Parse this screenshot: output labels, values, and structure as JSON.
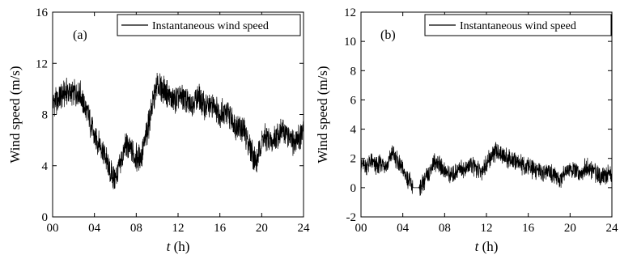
{
  "chart_data": [
    {
      "type": "line",
      "panel_label": "(a)",
      "xlabel": "t (h)",
      "xlabel_var": "t",
      "xlabel_unit": "(h)",
      "ylabel": "Wind speed (m/s)",
      "xlim": [
        0,
        24
      ],
      "ylim": [
        0,
        16
      ],
      "xticks": [
        0,
        4,
        8,
        12,
        16,
        20,
        24
      ],
      "xtick_labels": [
        "00",
        "04",
        "08",
        "12",
        "16",
        "20",
        "24"
      ],
      "yticks": [
        0,
        4,
        8,
        12,
        16
      ],
      "ytick_labels": [
        "0",
        "4",
        "8",
        "12",
        "16"
      ],
      "legend": "top-right",
      "grid": false,
      "series": [
        {
          "name": "Instantaneous wind speed",
          "x": [
            0,
            0.5,
            1,
            1.5,
            2,
            2.5,
            3,
            3.5,
            4,
            4.5,
            5,
            5.5,
            6,
            6.5,
            7,
            7.5,
            8,
            8.5,
            9,
            9.5,
            10,
            10.5,
            11,
            11.5,
            12,
            12.5,
            13,
            13.5,
            14,
            14.5,
            15,
            15.5,
            16,
            16.5,
            17,
            17.5,
            18,
            18.5,
            19,
            19.5,
            20,
            20.5,
            21,
            21.5,
            22,
            22.5,
            23,
            23.5,
            24
          ],
          "y": [
            9.0,
            9.2,
            9.6,
            9.8,
            9.6,
            9.8,
            8.8,
            7.6,
            6.2,
            5.8,
            4.8,
            3.4,
            3.0,
            4.2,
            5.6,
            5.2,
            4.6,
            4.8,
            6.5,
            8.6,
            10.2,
            10.0,
            9.6,
            9.0,
            9.2,
            9.4,
            8.8,
            9.0,
            9.4,
            8.6,
            8.6,
            8.8,
            8.0,
            8.2,
            7.8,
            7.2,
            7.0,
            6.4,
            5.2,
            4.2,
            6.0,
            6.1,
            5.8,
            6.4,
            6.8,
            6.4,
            5.6,
            6.2,
            6.5
          ]
        }
      ]
    },
    {
      "type": "line",
      "panel_label": "(b)",
      "xlabel": "t (h)",
      "xlabel_var": "t",
      "xlabel_unit": "(h)",
      "ylabel": "Wind speed (m/s)",
      "xlim": [
        0,
        24
      ],
      "ylim": [
        -2,
        12
      ],
      "xticks": [
        0,
        4,
        8,
        12,
        16,
        20,
        24
      ],
      "xtick_labels": [
        "00",
        "04",
        "08",
        "12",
        "16",
        "20",
        "24"
      ],
      "yticks": [
        -2,
        0,
        2,
        4,
        6,
        8,
        10,
        12
      ],
      "ytick_labels": [
        "-2",
        "0",
        "2",
        "4",
        "6",
        "8",
        "10",
        "12"
      ],
      "legend": "top-right",
      "grid": false,
      "series": [
        {
          "name": "Instantaneous wind speed",
          "x": [
            0,
            0.5,
            1,
            1.5,
            2,
            2.5,
            3,
            3.5,
            4,
            4.5,
            5,
            5.5,
            6,
            6.5,
            7,
            7.5,
            8,
            8.5,
            9,
            9.5,
            10,
            10.5,
            11,
            11.5,
            12,
            12.5,
            13,
            13.5,
            14,
            14.5,
            15,
            15.5,
            16,
            16.5,
            17,
            17.5,
            18,
            18.5,
            19,
            19.5,
            20,
            20.5,
            21,
            21.5,
            22,
            22.5,
            23,
            23.5,
            24
          ],
          "y": [
            1.6,
            1.5,
            1.8,
            1.4,
            1.7,
            1.5,
            2.4,
            1.8,
            1.2,
            0.6,
            0.0,
            0.0,
            0.4,
            1.0,
            1.8,
            1.6,
            1.2,
            0.8,
            1.0,
            1.4,
            1.2,
            1.6,
            1.3,
            1.1,
            1.6,
            2.2,
            2.5,
            2.3,
            2.0,
            1.8,
            1.8,
            1.5,
            1.4,
            1.2,
            1.2,
            1.0,
            1.1,
            0.8,
            0.5,
            1.2,
            1.3,
            1.1,
            1.0,
            1.4,
            1.2,
            1.0,
            0.8,
            0.9,
            0.9
          ]
        }
      ]
    }
  ]
}
